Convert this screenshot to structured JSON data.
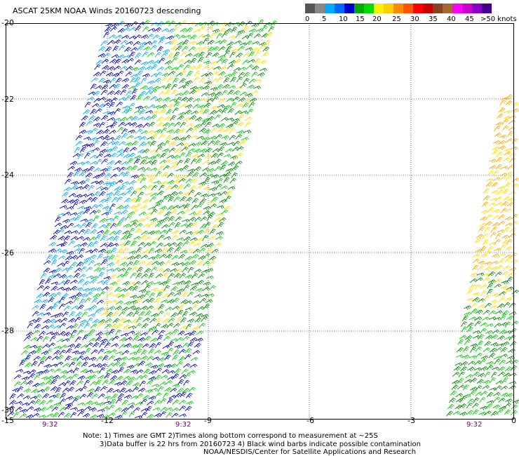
{
  "title": "ASCAT 25KM NOAA Winds 20160723 descending",
  "colorbar": {
    "labels": [
      "0",
      "5",
      "10",
      "15",
      "20",
      "25",
      "30",
      "35",
      "40",
      "45",
      ">50 knots"
    ],
    "colors": [
      "#555555",
      "#888888",
      "#00aaff",
      "#0000cc",
      "#00cc00",
      "#ffcc00",
      "#ff8800",
      "#ff0000",
      "#aa0000",
      "#884422",
      "#ff00ff",
      "#6600cc"
    ]
  },
  "latitude_labels": [
    "-20",
    "-22",
    "-24",
    "-26",
    "-28",
    "-30"
  ],
  "longitude_labels": [
    "-15",
    "-12",
    "-9",
    "-6",
    "-3",
    "0"
  ],
  "time_labels": [
    "9:32",
    "9:32",
    "9:32"
  ],
  "notes": {
    "line1": "Note: 1) Times are GMT 2)Times along bottom correspond to measurement at ~25S",
    "line2": "3)Data buffer is 22 hrs from 20160723 4) Black wind barbs indicate possible contamination",
    "line3": "NOAA/NESDIS/Center for Satellite Applications and Research"
  },
  "colors": {
    "grid": "#000000",
    "barb_blue": "#0000cc",
    "barb_cyan": "#00aaff",
    "barb_green": "#00cc00",
    "barb_darkgreen": "#008800",
    "barb_yellow": "#ffdd00",
    "barb_orange": "#ffaa00"
  }
}
